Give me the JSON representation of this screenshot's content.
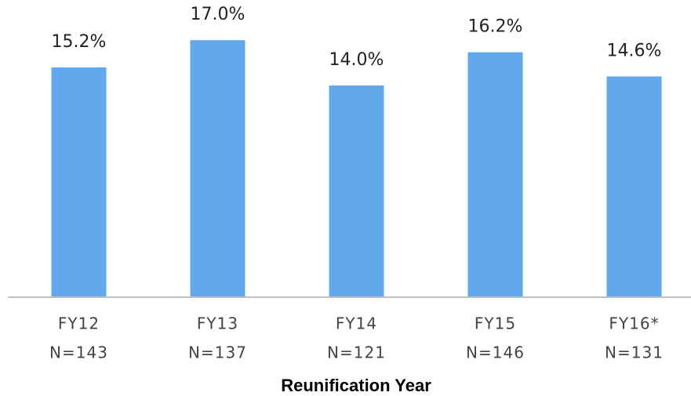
{
  "chart_data": {
    "type": "bar",
    "categories": [
      "FY12",
      "FY13",
      "FY14",
      "FY15",
      "FY16*"
    ],
    "category_counts": [
      "N=143",
      "N=137",
      "N=121",
      "N=146",
      "N=131"
    ],
    "values": [
      15.2,
      17.0,
      14.0,
      16.2,
      14.6
    ],
    "value_labels": [
      "15.2%",
      "17.0%",
      "14.0%",
      "16.2%",
      "14.6%"
    ],
    "color": "#62a8ed",
    "x_label": "Reunification Year",
    "ylim": [
      0,
      19.5
    ]
  }
}
